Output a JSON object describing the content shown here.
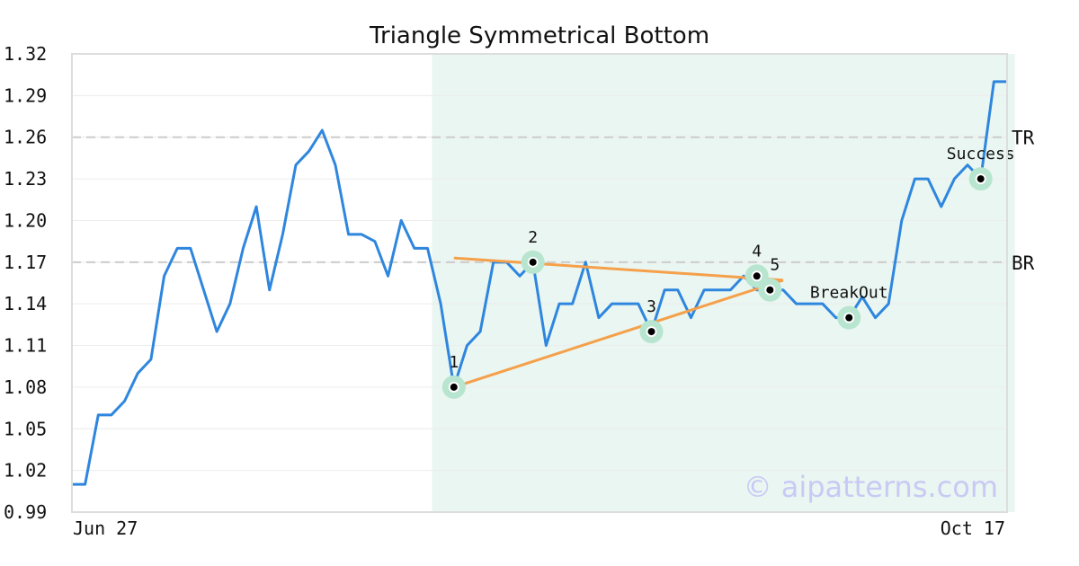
{
  "chart_data": {
    "type": "line",
    "title": "Triangle Symmetrical Bottom",
    "xlabel": "",
    "ylabel": "",
    "x_tick_labels": [
      "Jun 27",
      "Oct 17"
    ],
    "y_ticks": [
      "0.99",
      "1.02",
      "1.05",
      "1.08",
      "1.11",
      "1.14",
      "1.17",
      "1.20",
      "1.23",
      "1.26",
      "1.29",
      "1.32"
    ],
    "ylim": [
      0.99,
      1.32
    ],
    "grid": "horizontal",
    "colors": {
      "price": "#2e86de",
      "trendline": "#f5a04a",
      "highlight": "#eaf6f1",
      "marker_ring": "#b7e5cf",
      "reference": "#cccccc",
      "watermark": "#c9c9f5"
    },
    "series": [
      {
        "values": [
          1.01,
          1.01,
          1.06,
          1.06,
          1.07,
          1.09,
          1.1,
          1.16,
          1.18,
          1.18,
          1.15,
          1.12,
          1.14,
          1.18,
          1.21,
          1.15,
          1.19,
          1.24,
          1.25,
          1.265,
          1.24,
          1.19,
          1.19,
          1.185,
          1.16,
          1.2,
          1.18,
          1.18,
          1.14,
          1.08,
          1.11,
          1.12,
          1.17,
          1.17,
          1.16,
          1.17,
          1.11,
          1.14,
          1.14,
          1.17,
          1.13,
          1.14,
          1.14,
          1.14,
          1.12,
          1.15,
          1.15,
          1.13,
          1.15,
          1.15,
          1.15,
          1.16,
          1.15,
          1.15,
          1.15,
          1.14,
          1.14,
          1.14,
          1.13,
          1.13,
          1.145,
          1.13,
          1.14,
          1.2,
          1.23,
          1.23,
          1.21,
          1.23,
          1.24,
          1.23,
          1.3,
          1.3
        ]
      }
    ],
    "highlight_range": [
      27,
      72
    ],
    "reference_lines": [
      {
        "label": "TR",
        "y": 1.26
      },
      {
        "label": "BR",
        "y": 1.17
      }
    ],
    "trendlines": [
      {
        "from": [
          29,
          1.08
        ],
        "to": [
          54,
          1.157
        ]
      },
      {
        "from": [
          29,
          1.173
        ],
        "to": [
          54,
          1.157
        ]
      }
    ],
    "annotations": [
      {
        "label": "1",
        "x": 29,
        "y": 1.08,
        "position": "above"
      },
      {
        "label": "2",
        "x": 35,
        "y": 1.17,
        "position": "above"
      },
      {
        "label": "3",
        "x": 44,
        "y": 1.12,
        "position": "above"
      },
      {
        "label": "4",
        "x": 52,
        "y": 1.16,
        "position": "above"
      },
      {
        "label": "5",
        "x": 53,
        "y": 1.15,
        "position": "above-right"
      },
      {
        "label": "BreakOut",
        "x": 59,
        "y": 1.13,
        "position": "above"
      },
      {
        "label": "Success",
        "x": 69,
        "y": 1.23,
        "position": "above"
      }
    ],
    "watermark": "© aipatterns.com"
  }
}
